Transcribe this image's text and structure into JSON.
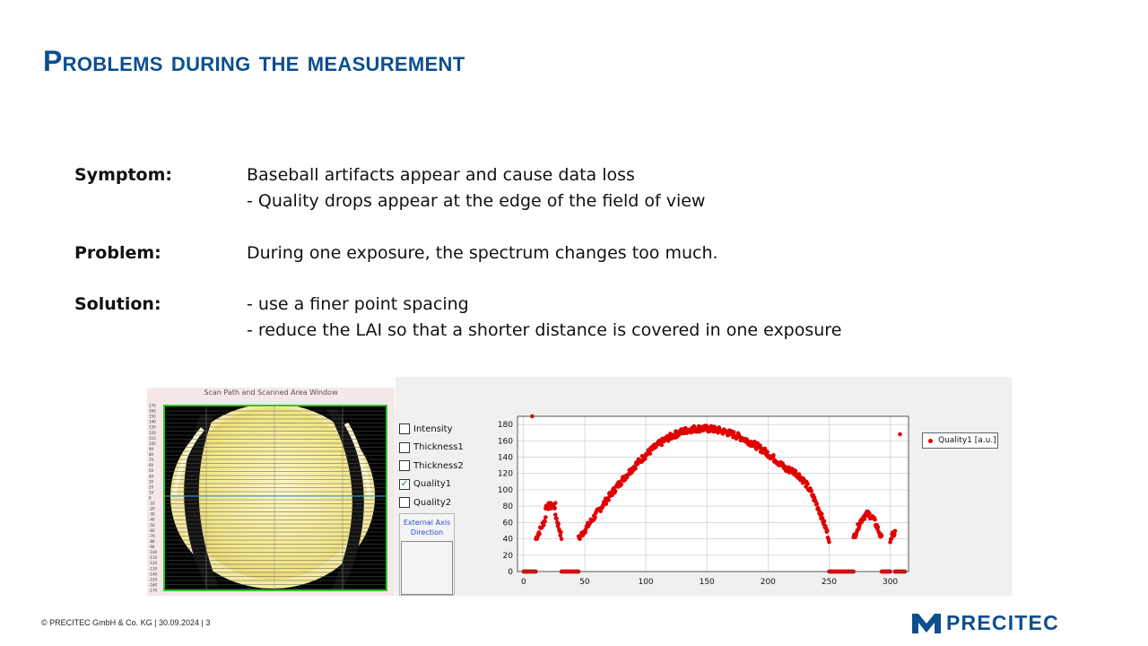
{
  "slide": {
    "title": "Problems during the measurement",
    "footer": "© PRECITEC GmbH & Co. KG | 30.09.2024 | 3",
    "logo_text": "PRECITEC",
    "brand_color": "#0b4f8f"
  },
  "content": {
    "symptom_label": "Symptom:",
    "symptom_line1": "Baseball artifacts appear and cause data loss",
    "symptom_line2": "- Quality drops appear at the edge of the field of view",
    "problem_label": "Problem:",
    "problem_text": "During one exposure, the spectrum changes too much.",
    "solution_label": "Solution:",
    "solution_line1": "- use a finer point spacing",
    "solution_line2": "- reduce the LAI so that a shorter distance is covered in one exposure"
  },
  "scan_window": {
    "title": "Scan Path and Scanned Area Window",
    "y_ticks": [
      "170",
      "160",
      "150",
      "140",
      "130",
      "120",
      "110",
      "100",
      "90",
      "80",
      "70",
      "60",
      "50",
      "40",
      "30",
      "20",
      "10",
      "0",
      "-10",
      "-20",
      "-30",
      "-40",
      "-50",
      "-60",
      "-70",
      "-80",
      "-90",
      "-100",
      "-110",
      "-120",
      "-130",
      "-140",
      "-150",
      "-160",
      "-170"
    ]
  },
  "panel": {
    "checkboxes": [
      {
        "label": "Intensity",
        "checked": false
      },
      {
        "label": "Thickness1",
        "checked": false
      },
      {
        "label": "Thickness2",
        "checked": false
      },
      {
        "label": "Quality1",
        "checked": true
      },
      {
        "label": "Quality2",
        "checked": false
      }
    ],
    "external_axis_label": "External Axis Direction",
    "legend_label": "Quality1 [a.u.]"
  },
  "chart_data": {
    "type": "scatter",
    "series": [
      {
        "name": "Quality1 [a.u.]",
        "color": "#e00000"
      }
    ],
    "x_ticks": [
      0,
      50,
      100,
      150,
      200,
      250,
      300
    ],
    "y_ticks": [
      0,
      20,
      40,
      60,
      80,
      100,
      120,
      140,
      160,
      180
    ],
    "xlim": [
      -5,
      315
    ],
    "ylim": [
      0,
      190
    ],
    "grid": true,
    "legend_position": "right",
    "segments": [
      {
        "x0": 0,
        "x1": 10,
        "shape": "flat",
        "peak": 0
      },
      {
        "x0": 10,
        "x1": 18,
        "shape": "ramp",
        "from": 40,
        "to": 65
      },
      {
        "x0": 18,
        "x1": 26,
        "shape": "flat",
        "peak": 80
      },
      {
        "x0": 26,
        "x1": 31,
        "shape": "ramp",
        "from": 70,
        "to": 42
      },
      {
        "x0": 31,
        "x1": 45,
        "shape": "flat",
        "peak": 0
      },
      {
        "x0": 45,
        "x1": 145,
        "shape": "rise",
        "from": 40,
        "to": 175
      },
      {
        "x0": 145,
        "x1": 215,
        "shape": "fall",
        "from": 175,
        "to": 125
      },
      {
        "x0": 215,
        "x1": 250,
        "shape": "fall",
        "from": 125,
        "to": 40
      },
      {
        "x0": 250,
        "x1": 270,
        "shape": "flat",
        "peak": 0
      },
      {
        "x0": 270,
        "x1": 293,
        "shape": "bump",
        "from": 40,
        "to": 70
      },
      {
        "x0": 293,
        "x1": 300,
        "shape": "flat",
        "peak": 0
      },
      {
        "x0": 300,
        "x1": 304,
        "shape": "ramp",
        "from": 40,
        "to": 48
      },
      {
        "x0": 304,
        "x1": 312,
        "shape": "flat",
        "peak": 0
      }
    ],
    "outliers": [
      {
        "x": 7,
        "y": 190
      },
      {
        "x": 308,
        "y": 168
      }
    ]
  }
}
